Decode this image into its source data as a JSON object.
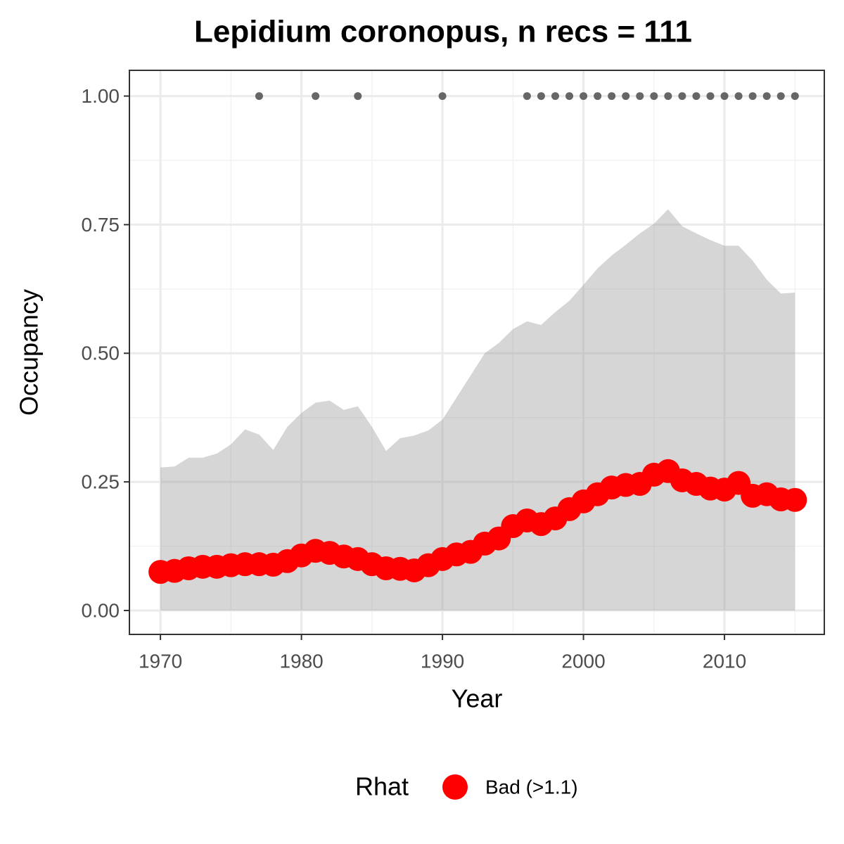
{
  "chart_data": {
    "type": "line",
    "title": "Lepidium coronopus, n recs = 111",
    "x_label": "Year",
    "y_label": "Occupancy",
    "x": [
      1970,
      1971,
      1972,
      1973,
      1974,
      1975,
      1976,
      1977,
      1978,
      1979,
      1980,
      1981,
      1982,
      1983,
      1984,
      1985,
      1986,
      1987,
      1988,
      1989,
      1990,
      1991,
      1992,
      1993,
      1994,
      1995,
      1996,
      1997,
      1998,
      1999,
      2000,
      2001,
      2002,
      2003,
      2004,
      2005,
      2006,
      2007,
      2008,
      2009,
      2010,
      2011,
      2012,
      2013,
      2014,
      2015
    ],
    "series": [
      {
        "name": "Bad (>1.1)",
        "color": "#ff0000",
        "values": [
          0.075,
          0.077,
          0.082,
          0.085,
          0.085,
          0.088,
          0.09,
          0.09,
          0.089,
          0.096,
          0.107,
          0.116,
          0.112,
          0.105,
          0.1,
          0.09,
          0.082,
          0.081,
          0.078,
          0.088,
          0.1,
          0.109,
          0.114,
          0.13,
          0.14,
          0.164,
          0.175,
          0.168,
          0.179,
          0.197,
          0.212,
          0.226,
          0.239,
          0.244,
          0.246,
          0.264,
          0.271,
          0.253,
          0.246,
          0.237,
          0.235,
          0.248,
          0.223,
          0.226,
          0.216,
          0.215
        ]
      }
    ],
    "ribbon": {
      "color": "#999999",
      "upper": [
        0.278,
        0.28,
        0.297,
        0.297,
        0.305,
        0.323,
        0.352,
        0.342,
        0.312,
        0.357,
        0.384,
        0.404,
        0.408,
        0.39,
        0.397,
        0.357,
        0.31,
        0.335,
        0.34,
        0.35,
        0.371,
        0.414,
        0.457,
        0.5,
        0.52,
        0.547,
        0.562,
        0.555,
        0.58,
        0.602,
        0.633,
        0.665,
        0.69,
        0.711,
        0.733,
        0.752,
        0.78,
        0.747,
        0.733,
        0.72,
        0.709,
        0.709,
        0.68,
        0.643,
        0.616,
        0.618
      ],
      "lower": [
        0,
        0,
        0,
        0,
        0,
        0,
        0,
        0,
        0,
        0,
        0,
        0,
        0,
        0,
        0,
        0,
        0,
        0,
        0,
        0,
        0,
        0,
        0,
        0,
        0,
        0,
        0,
        0,
        0,
        0,
        0,
        0,
        0,
        0,
        0,
        0,
        0,
        0,
        0,
        0,
        0,
        0,
        0,
        0,
        0,
        0
      ]
    },
    "detections": {
      "color": "#666666",
      "x": [
        1977,
        1981,
        1984,
        1990,
        1996,
        1997,
        1998,
        1999,
        2000,
        2001,
        2002,
        2003,
        2004,
        2005,
        2006,
        2007,
        2008,
        2009,
        2010,
        2011,
        2012,
        2013,
        2014,
        2015
      ],
      "values": [
        1,
        1,
        1,
        1,
        1,
        1,
        1,
        1,
        1,
        1,
        1,
        1,
        1,
        1,
        1,
        1,
        1,
        1,
        1,
        1,
        1,
        1,
        1,
        1
      ]
    },
    "legend_title": "Rhat",
    "xlim": [
      1967.8,
      2017.08
    ],
    "ylim": [
      -0.0465,
      1.05
    ],
    "xticks": [
      1970,
      1980,
      1990,
      2000,
      2010
    ],
    "xminor": [
      1975,
      1985,
      1995,
      2005,
      2015
    ],
    "yticks": [
      {
        "value": 0,
        "label": "0.00"
      },
      {
        "value": 0.25,
        "label": "0.25"
      },
      {
        "value": 0.5,
        "label": "0.50"
      },
      {
        "value": 0.75,
        "label": "0.75"
      },
      {
        "value": 1,
        "label": "1.00"
      }
    ],
    "yminor": [
      0.125,
      0.375,
      0.625,
      0.875
    ],
    "grid": true
  }
}
